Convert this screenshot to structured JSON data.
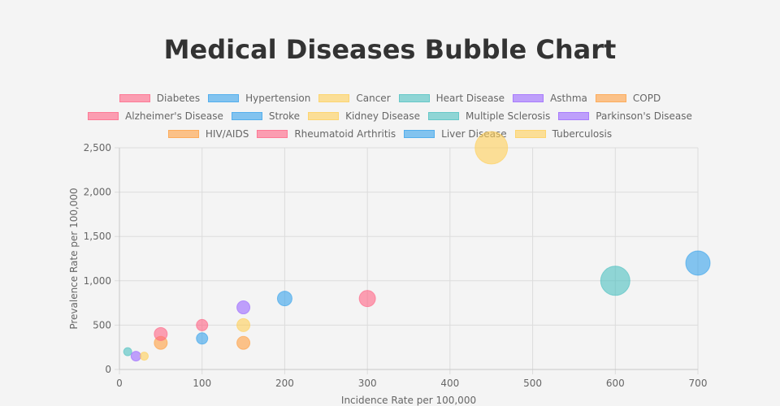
{
  "chart_data": {
    "type": "scatter",
    "subtype": "bubble",
    "title": "Medical Diseases Bubble Chart",
    "xlabel": "Incidence Rate per 100,000",
    "ylabel": "Prevalence Rate per 100,000",
    "xlim": [
      0,
      700
    ],
    "ylim": [
      0,
      2500
    ],
    "x_ticks": [
      0,
      100,
      200,
      300,
      400,
      500,
      600,
      700
    ],
    "y_ticks": [
      0,
      500,
      1000,
      1500,
      2000,
      2500
    ],
    "x_tick_labels": [
      "0",
      "100",
      "200",
      "300",
      "400",
      "500",
      "600",
      "700"
    ],
    "y_tick_labels": [
      "0",
      "500",
      "1,000",
      "1,500",
      "2,000",
      "2,500"
    ],
    "grid": true,
    "legend_position": "top",
    "legend_rows": [
      [
        0,
        1,
        2,
        3,
        4,
        5
      ],
      [
        6,
        7,
        8,
        9,
        10
      ],
      [
        11,
        12,
        13,
        14
      ]
    ],
    "series": [
      {
        "name": "Diabetes",
        "color": "#ff6384",
        "x": 300,
        "y": 800,
        "r": 10
      },
      {
        "name": "Hypertension",
        "color": "#36a2eb",
        "x": 700,
        "y": 1200,
        "r": 15
      },
      {
        "name": "Cancer",
        "color": "#ffce56",
        "x": 450,
        "y": 2500,
        "r": 20
      },
      {
        "name": "Heart Disease",
        "color": "#4bc0c0",
        "x": 600,
        "y": 1000,
        "r": 18
      },
      {
        "name": "Asthma",
        "color": "#9966ff",
        "x": 150,
        "y": 700,
        "r": 8
      },
      {
        "name": "COPD",
        "color": "#ff9f40",
        "x": 50,
        "y": 300,
        "r": 8
      },
      {
        "name": "Alzheimer's Disease",
        "color": "#ff6384",
        "x": 50,
        "y": 400,
        "r": 8
      },
      {
        "name": "Stroke",
        "color": "#36a2eb",
        "x": 100,
        "y": 350,
        "r": 7
      },
      {
        "name": "Kidney Disease",
        "color": "#ffce56",
        "x": 150,
        "y": 500,
        "r": 8
      },
      {
        "name": "Multiple Sclerosis",
        "color": "#4bc0c0",
        "x": 10,
        "y": 200,
        "r": 5
      },
      {
        "name": "Parkinson's Disease",
        "color": "#9966ff",
        "x": 20,
        "y": 150,
        "r": 6
      },
      {
        "name": "HIV/AIDS",
        "color": "#ff9f40",
        "x": 150,
        "y": 300,
        "r": 8
      },
      {
        "name": "Rheumatoid Arthritis",
        "color": "#ff6384",
        "x": 100,
        "y": 500,
        "r": 7
      },
      {
        "name": "Liver Disease",
        "color": "#36a2eb",
        "x": 200,
        "y": 800,
        "r": 9
      },
      {
        "name": "Tuberculosis",
        "color": "#ffce56",
        "x": 30,
        "y": 150,
        "r": 5
      }
    ]
  }
}
